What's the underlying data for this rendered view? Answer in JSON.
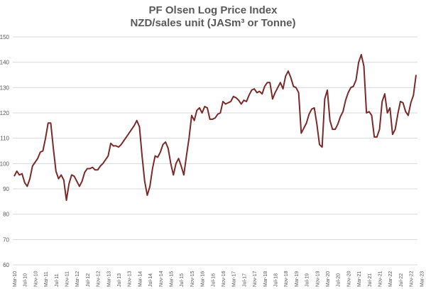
{
  "chart_data": {
    "type": "line",
    "title": "PF Olsen Log Price Index",
    "subtitle": "NZD/sales unit (JASm³ or Tonne)",
    "xlabel": "",
    "ylabel": "",
    "ylim": [
      60,
      150
    ],
    "yticks": [
      60,
      70,
      80,
      90,
      100,
      110,
      120,
      130,
      140,
      150
    ],
    "grid": true,
    "legend": "none",
    "line_color": "#7b2a2a",
    "x_tick_labels": [
      "Mar-10",
      "Jul-10",
      "Nov-10",
      "Mar-11",
      "Jul-11",
      "Nov-11",
      "Mar-12",
      "Jul-12",
      "Nov-12",
      "Mar-13",
      "Jul-13",
      "Nov-13",
      "Mar-14",
      "Jul-14",
      "Nov-14",
      "Mar-15",
      "Jul-15",
      "Nov-15",
      "Mar-16",
      "Jul-16",
      "Nov-16",
      "Mar-17",
      "Jul-17",
      "Nov-17",
      "Mar-18",
      "Jul-18",
      "Nov-18",
      "Mar-19",
      "Jul-19",
      "Nov-19",
      "Mar-20",
      "Jul-20",
      "Nov-20",
      "Mar-21",
      "Jul-21",
      "Nov-21",
      "Mar-22",
      "Jul-22",
      "Nov-22",
      "Mar-23"
    ],
    "start_month": "2010-03",
    "values": [
      95,
      97,
      95.5,
      96,
      92.5,
      91,
      94,
      99,
      100.5,
      102,
      104.5,
      105,
      110,
      116,
      116,
      106,
      97,
      94,
      95.5,
      93.5,
      85.5,
      92,
      95.5,
      95,
      93,
      91,
      93,
      96.5,
      98,
      98,
      98.5,
      97.5,
      97.5,
      99,
      100,
      101.5,
      103,
      108,
      107,
      107,
      106.5,
      107.5,
      109,
      110.5,
      112,
      113.5,
      115,
      117,
      114.5,
      103,
      93,
      87.5,
      91,
      98,
      103,
      102.5,
      104.5,
      107.5,
      108.5,
      106,
      100,
      95.5,
      100,
      102,
      99,
      95.5,
      103,
      110,
      119,
      117,
      121,
      122,
      120,
      122.5,
      122,
      117.5,
      117.5,
      118,
      119.5,
      120,
      124.5,
      123.5,
      124,
      124.5,
      126.5,
      126,
      125,
      123.5,
      125,
      124.5,
      127,
      129,
      129.5,
      128,
      128.5,
      127.5,
      130.5,
      132,
      132,
      125.5,
      128,
      130,
      132,
      129.5,
      134.5,
      136.5,
      134,
      130.5,
      130,
      128,
      112,
      114,
      116,
      119.5,
      121.5,
      122,
      115.5,
      107.5,
      106.5,
      125.5,
      129,
      117,
      113.5,
      113.5,
      115.5,
      118.5,
      120.5,
      125,
      128,
      130,
      130.5,
      133,
      140,
      143,
      138.5,
      120,
      120.5,
      119,
      110.5,
      110.5,
      113.5,
      124.5,
      127.5,
      120,
      122,
      111.5,
      113.5,
      119.5,
      124.5,
      124,
      120.5,
      119,
      124,
      127,
      135
    ]
  }
}
